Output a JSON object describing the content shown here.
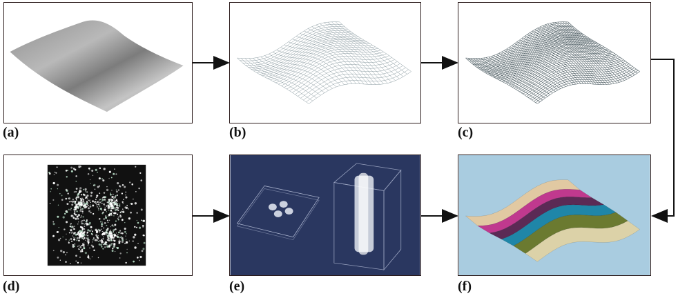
{
  "panels": [
    {
      "id": "a",
      "label": "(a)"
    },
    {
      "id": "b",
      "label": "(b)"
    },
    {
      "id": "c",
      "label": "(c)"
    },
    {
      "id": "d",
      "label": "(d)"
    },
    {
      "id": "e",
      "label": "(e)"
    },
    {
      "id": "f",
      "label": "(f)"
    }
  ],
  "colors": {
    "frame": "#2a1a1a",
    "arrow": "#111111",
    "surface_gray": "#a8a8a8",
    "mesh_line": "#7a8a90",
    "dark_bg": "#2a3760",
    "sky_blue": "#a9cce0",
    "band_tan": "#e1c9a2",
    "band_magenta": "#c0398e",
    "band_purple": "#5b2a55",
    "band_teal": "#1f86a8",
    "band_olive": "#6b7a30",
    "band_cream": "#dcd2a8"
  }
}
